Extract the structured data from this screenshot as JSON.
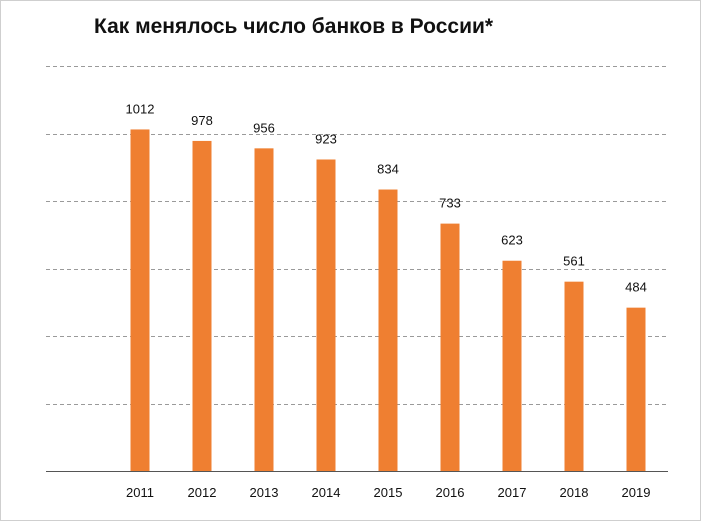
{
  "chart_data": {
    "type": "bar",
    "title": "Как менялось число банков в России*",
    "categories": [
      "2011",
      "2012",
      "2013",
      "2014",
      "2015",
      "2016",
      "2017",
      "2018",
      "2019"
    ],
    "series": [
      {
        "values": [
          1012,
          978,
          956,
          923,
          834,
          733,
          623,
          561,
          484
        ]
      }
    ],
    "value_labels": [
      "1012",
      "978",
      "956",
      "923",
      "834",
      "733",
      "623",
      "561",
      "484"
    ],
    "xlabel": "",
    "ylabel": "",
    "ylim": [
      0,
      1200
    ],
    "grid": true,
    "grid_style": "dashed",
    "y_tick_labels_visible": false,
    "legend": "none",
    "colors": {
      "bar": "#ef7f31",
      "grid": "#9a9a9a",
      "text": "#111111"
    }
  }
}
